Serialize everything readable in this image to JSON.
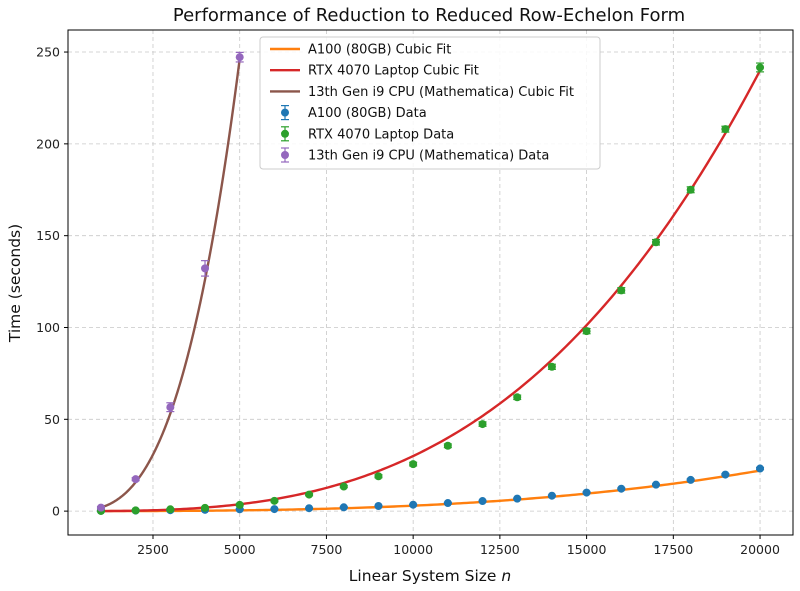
{
  "chart_data": {
    "type": "line",
    "title": "Performance of Reduction to Reduced Row-Echelon Form",
    "xlabel": "Linear System Size ",
    "xlabel_var": "n",
    "ylabel": "Time (seconds)",
    "xlim": [
      50,
      20950
    ],
    "ylim": [
      -13,
      262
    ],
    "xticks": [
      2500,
      5000,
      7500,
      10000,
      12500,
      15000,
      17500,
      20000
    ],
    "yticks": [
      0,
      50,
      100,
      150,
      200,
      250
    ],
    "grid": true,
    "legend_placement": "upper-center",
    "legend": [
      "A100 (80GB) Cubic Fit",
      "RTX 4070 Laptop Cubic Fit",
      "13th Gen i9 CPU (Mathematica) Cubic Fit",
      "A100 (80GB) Data",
      "RTX 4070 Laptop Data",
      "13th Gen i9 CPU (Mathematica) Data"
    ],
    "fits": [
      {
        "name": "A100 (80GB) Cubic Fit",
        "color": "#ff7f0e",
        "x_range": [
          1000,
          20000
        ],
        "coef": [
          0.0,
          0.0,
          4e-09,
          2.56e-12
        ]
      },
      {
        "name": "RTX 4070 Laptop Cubic Fit",
        "color": "#d62728",
        "x_range": [
          1000,
          20000
        ],
        "coef": [
          0.0,
          0.0,
          0.0,
          3e-11
        ]
      },
      {
        "name": "13th Gen i9 CPU (Mathematica) Cubic Fit",
        "color": "#8c564b",
        "x_range": [
          1000,
          5000
        ],
        "coef": [
          0.0,
          0.0,
          0.0,
          1.97e-09
        ]
      }
    ],
    "series": [
      {
        "name": "A100 (80GB) Data",
        "color": "#1f77b4",
        "x": [
          1000,
          2000,
          3000,
          4000,
          5000,
          6000,
          7000,
          8000,
          9000,
          10000,
          11000,
          12000,
          13000,
          14000,
          15000,
          16000,
          17000,
          18000,
          19000,
          20000
        ],
        "y": [
          0.2,
          0.3,
          0.5,
          0.7,
          1.0,
          1.1,
          1.6,
          2.1,
          2.8,
          3.5,
          4.4,
          5.5,
          6.8,
          8.4,
          10.1,
          12.2,
          14.4,
          17.0,
          19.9,
          23.2
        ],
        "err": [
          0.2,
          0.2,
          0.2,
          0.2,
          0.2,
          0.2,
          0.2,
          0.2,
          0.2,
          0.2,
          0.3,
          0.3,
          0.3,
          0.3,
          0.4,
          0.4,
          0.4,
          0.5,
          0.5,
          0.6
        ]
      },
      {
        "name": "RTX 4070 Laptop Data",
        "color": "#2ca02c",
        "x": [
          1000,
          2000,
          3000,
          4000,
          5000,
          6000,
          7000,
          8000,
          9000,
          10000,
          11000,
          12000,
          13000,
          14000,
          15000,
          16000,
          17000,
          18000,
          19000,
          20000
        ],
        "y": [
          0.1,
          0.4,
          1.0,
          1.8,
          3.4,
          5.6,
          9.0,
          13.4,
          19.0,
          25.6,
          35.6,
          47.4,
          62.0,
          78.6,
          98.0,
          120.2,
          146.4,
          175.0,
          208.0,
          241.6
        ],
        "err": [
          0.3,
          0.3,
          0.4,
          0.4,
          0.5,
          0.5,
          0.6,
          0.6,
          0.8,
          1.0,
          1.0,
          1.2,
          1.2,
          1.4,
          1.4,
          1.5,
          1.5,
          1.6,
          1.6,
          2.4
        ]
      },
      {
        "name": "13th Gen i9 CPU (Mathematica) Data",
        "color": "#9467bd",
        "x": [
          1000,
          2000,
          3000,
          4000,
          5000
        ],
        "y": [
          1.9,
          17.4,
          56.6,
          132.2,
          247.2
        ],
        "err": [
          0.6,
          0.8,
          2.4,
          4.2,
          2.6
        ]
      }
    ]
  }
}
